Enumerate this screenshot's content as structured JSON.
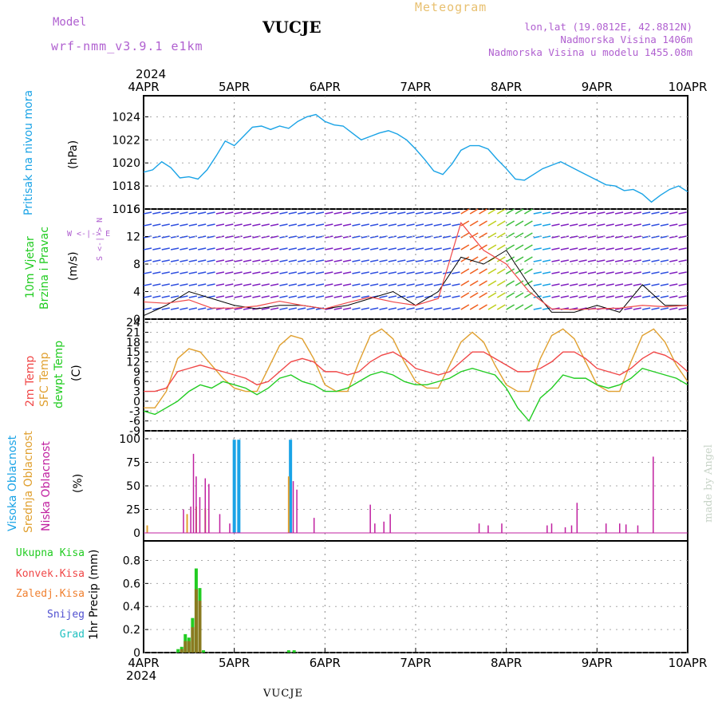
{
  "header": {
    "model_label": "Model",
    "model_name": "wrf-nmm_v3.9.1  e1km",
    "station": "VUCJE",
    "title": "Meteogram",
    "lonlat": "lon,lat (19.0812E, 42.8812N)",
    "elevation": "Nadmorska Visina 1406m",
    "model_elevation": "Nadmorska Visina u modelu 1455.08m",
    "year": "2024",
    "footer": "VUCJE",
    "credit": "made by Angel"
  },
  "colors": {
    "model": "#b060d0",
    "title": "#e8c070",
    "pressure": "#1aa3e6",
    "wind_label": "#22cc22",
    "temp2m": "#f04848",
    "sfctemp": "#e0a030",
    "dewpt": "#22cc22",
    "high_cloud": "#1aa3e6",
    "mid_cloud": "#e0a030",
    "low_cloud": "#c020a0",
    "precip_total": "#22cc22",
    "precip_conv": "#f04848",
    "precip_frozen": "#f08030",
    "snow": "#5050d0",
    "hail": "#20c0c0"
  },
  "x_axis": {
    "tick_labels": [
      "4APR",
      "5APR",
      "6APR",
      "7APR",
      "8APR",
      "9APR",
      "10APR"
    ]
  },
  "panels": {
    "pressure": {
      "label": "Pritisak na nivou mora",
      "unit": "(hPa)"
    },
    "wind": {
      "label1": "10m Vjetar",
      "label2": "Brzina i Pravac",
      "unit": "(m/s)",
      "compass": "W <-|-> E",
      "compass_ns": "S <-|-> N"
    },
    "temp": {
      "label1": "2m Temp",
      "label2": "SFC Temp",
      "label3": "dewpt Temp",
      "unit": "(C)"
    },
    "cloud": {
      "label1": "Visoka Oblacnost",
      "label2": "Srednja Oblacnost",
      "label3": "Niska Oblacnost",
      "unit": "(%)"
    },
    "precip": {
      "legend": [
        "Ukupna Kisa",
        "Konvek.Kisa",
        "Zaledj.Kisa",
        "Snijeg",
        "Grad"
      ],
      "unit": "1hr Precip (mm)"
    }
  },
  "chart_data": [
    {
      "type": "line",
      "name": "pressure",
      "ylim": [
        1016,
        1025
      ],
      "yticks": [
        1016,
        1018,
        1020,
        1022,
        1024
      ],
      "x": [
        0,
        0.1,
        0.2,
        0.3,
        0.4,
        0.5,
        0.6,
        0.7,
        0.8,
        0.9,
        1.0,
        1.1,
        1.2,
        1.3,
        1.4,
        1.5,
        1.6,
        1.7,
        1.8,
        1.9,
        2.0,
        2.1,
        2.2,
        2.3,
        2.4,
        2.5,
        2.6,
        2.7,
        2.8,
        2.9,
        3.0,
        3.1,
        3.2,
        3.3,
        3.4,
        3.5,
        3.6,
        3.7,
        3.8,
        3.9,
        4.0,
        4.1,
        4.2,
        4.3,
        4.4,
        4.5,
        4.6,
        4.7,
        4.8,
        4.9,
        5.0,
        5.1,
        5.2,
        5.3,
        5.4,
        5.5,
        5.6,
        5.7,
        5.8,
        5.9,
        6.0
      ],
      "series": [
        {
          "values": [
            1019.2,
            1019.4,
            1020.1,
            1019.6,
            1018.7,
            1018.8,
            1018.6,
            1019.4,
            1020.6,
            1021.9,
            1021.5,
            1022.3,
            1023.1,
            1023.2,
            1022.9,
            1023.2,
            1023.0,
            1023.6,
            1024.0,
            1024.2,
            1023.6,
            1023.3,
            1023.2,
            1022.6,
            1022.0,
            1022.3,
            1022.6,
            1022.8,
            1022.5,
            1022.0,
            1021.2,
            1020.3,
            1019.3,
            1019.0,
            1019.9,
            1021.1,
            1021.5,
            1021.5,
            1021.2,
            1020.3,
            1019.5,
            1018.6,
            1018.5,
            1019.0,
            1019.5,
            1019.8,
            1020.1,
            1019.7,
            1019.3,
            1018.9,
            1018.5,
            1018.1,
            1018.0,
            1017.6,
            1017.7,
            1017.3,
            1016.6,
            1017.2,
            1017.7,
            1018.0,
            1017.5
          ]
        }
      ]
    },
    {
      "type": "line",
      "name": "wind_speed",
      "ylim": [
        0,
        16
      ],
      "yticks": [
        0,
        4,
        8,
        12,
        16
      ],
      "x": [
        0,
        0.25,
        0.5,
        0.75,
        1.0,
        1.25,
        1.5,
        1.75,
        2.0,
        2.25,
        2.5,
        2.75,
        3.0,
        3.25,
        3.5,
        3.75,
        4.0,
        4.25,
        4.5,
        4.75,
        5.0,
        5.25,
        5.5,
        5.75,
        6.0
      ],
      "series": [
        {
          "values": [
            0.5,
            2,
            4,
            3,
            2,
            1.5,
            2,
            2,
            1.5,
            2,
            3,
            4,
            2,
            4,
            9,
            8,
            10,
            5,
            1,
            1,
            2,
            1,
            5,
            2,
            2
          ]
        },
        {
          "values": [
            2.5,
            2.3,
            2.8,
            1.6,
            1.6,
            1.9,
            2.6,
            2.0,
            1.5,
            2.4,
            3.2,
            2.5,
            2.0,
            3.0,
            14,
            10,
            8,
            4,
            1.5,
            1.4,
            1.5,
            1.6,
            2.0,
            1.8,
            2.0
          ]
        }
      ]
    },
    {
      "type": "line",
      "name": "temperature",
      "ylim": [
        -9,
        25
      ],
      "yticks": [
        -9,
        -6,
        -3,
        0,
        3,
        6,
        9,
        12,
        15,
        18,
        21,
        24
      ],
      "x": [
        0,
        0.125,
        0.25,
        0.375,
        0.5,
        0.625,
        0.75,
        0.875,
        1.0,
        1.125,
        1.25,
        1.375,
        1.5,
        1.625,
        1.75,
        1.875,
        2.0,
        2.125,
        2.25,
        2.375,
        2.5,
        2.625,
        2.75,
        2.875,
        3.0,
        3.125,
        3.25,
        3.375,
        3.5,
        3.625,
        3.75,
        3.875,
        4.0,
        4.125,
        4.25,
        4.375,
        4.5,
        4.625,
        4.75,
        4.875,
        5.0,
        5.125,
        5.25,
        5.375,
        5.5,
        5.625,
        5.75,
        5.875,
        6.0
      ],
      "series": [
        {
          "values": [
            3,
            3,
            4,
            9,
            10,
            11,
            10,
            9,
            8,
            7,
            5,
            6,
            9,
            12,
            13,
            12,
            9,
            9,
            8,
            9,
            12,
            14,
            15,
            13,
            10,
            9,
            8,
            9,
            12,
            15,
            15,
            13,
            11,
            9,
            9,
            10,
            12,
            15,
            15,
            13,
            10,
            9,
            8,
            10,
            13,
            15,
            14,
            12,
            9
          ]
        },
        {
          "values": [
            -2,
            -2,
            3,
            13,
            16,
            15,
            11,
            7,
            4,
            3,
            3,
            10,
            17,
            20,
            19,
            13,
            5,
            3,
            3,
            12,
            20,
            22,
            19,
            12,
            6,
            4,
            4,
            11,
            18,
            21,
            18,
            11,
            5,
            3,
            3,
            13,
            20,
            22,
            19,
            12,
            5,
            3,
            3,
            12,
            20,
            22,
            18,
            11,
            6
          ]
        },
        {
          "values": [
            -3,
            -4,
            -2,
            0,
            3,
            5,
            4,
            6,
            5,
            4,
            2,
            4,
            7,
            8,
            6,
            5,
            3,
            3,
            4,
            6,
            8,
            9,
            8,
            6,
            5,
            5,
            6,
            7,
            9,
            10,
            9,
            8,
            4,
            -2,
            -6,
            1,
            4,
            8,
            7,
            7,
            5,
            4,
            5,
            7,
            10,
            9,
            8,
            7,
            5
          ]
        }
      ]
    },
    {
      "type": "bar",
      "name": "cloud",
      "ylim": [
        0,
        100
      ],
      "yticks": [
        0,
        25,
        50,
        75,
        100
      ],
      "series": [
        {
          "name": "Visoka Oblacnost",
          "x": [
            1.0,
            1.05,
            1.62
          ],
          "values": [
            99,
            99,
            99
          ]
        },
        {
          "name": "Srednja Oblacnost",
          "x": [
            0.04,
            0.48,
            0.58,
            0.68,
            1.6
          ],
          "values": [
            8,
            20,
            28,
            26,
            60
          ]
        },
        {
          "name": "Niska Oblacnost",
          "x": [
            0.44,
            0.52,
            0.55,
            0.58,
            0.62,
            0.68,
            0.72,
            0.84,
            0.95,
            1.65,
            1.69,
            1.88,
            2.5,
            2.55,
            2.65,
            2.72,
            3.7,
            3.8,
            3.95,
            4.45,
            4.5,
            4.65,
            4.72,
            4.78,
            5.1,
            5.25,
            5.32,
            5.45,
            5.62
          ],
          "values": [
            25,
            28,
            84,
            60,
            38,
            58,
            52,
            20,
            10,
            55,
            46,
            16,
            30,
            10,
            12,
            20,
            10,
            8,
            10,
            8,
            10,
            6,
            8,
            32,
            10,
            10,
            9,
            8,
            81
          ]
        }
      ]
    },
    {
      "type": "bar",
      "name": "precip",
      "ylim": [
        0,
        0.9
      ],
      "yticks": [
        0,
        0.2,
        0.4,
        0.6,
        0.8
      ],
      "series": [
        {
          "name": "Ukupna Kisa",
          "x": [
            0.38,
            0.42,
            0.46,
            0.5,
            0.54,
            0.58,
            0.62,
            0.66,
            1.6,
            1.66
          ],
          "values": [
            0.03,
            0.05,
            0.16,
            0.13,
            0.3,
            0.73,
            0.56,
            0.02,
            0.02,
            0.02
          ]
        },
        {
          "name": "Konvek.Kisa",
          "x": [
            0.42,
            0.46,
            0.5,
            0.54,
            0.58,
            0.62
          ],
          "values": [
            0.03,
            0.1,
            0.1,
            0.22,
            0.55,
            0.45
          ]
        }
      ]
    }
  ]
}
